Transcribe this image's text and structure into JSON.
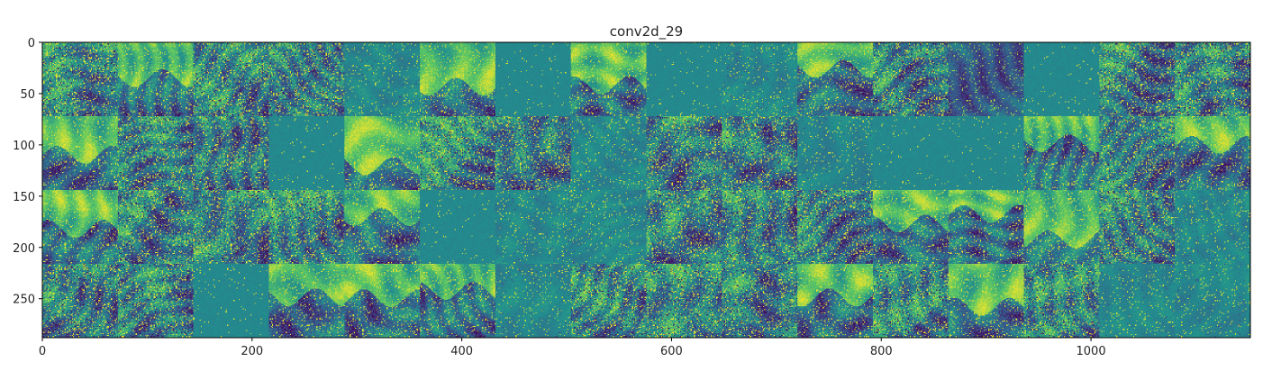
{
  "title": "conv2d_29",
  "image_grid": {
    "rows": 4,
    "cols": 16,
    "tile_pixels": 72,
    "colormap_name": "viridis",
    "colormap_stops": [
      "#440154",
      "#3b528b",
      "#21908d",
      "#5dc962",
      "#fde725"
    ],
    "xlim": [
      0,
      1152
    ],
    "ylim": [
      288,
      0
    ]
  },
  "axes": {
    "x_ticks": [
      {
        "value": 0,
        "label": "0"
      },
      {
        "value": 200,
        "label": "200"
      },
      {
        "value": 400,
        "label": "400"
      },
      {
        "value": 600,
        "label": "600"
      },
      {
        "value": 800,
        "label": "800"
      },
      {
        "value": 1000,
        "label": "1000"
      }
    ],
    "y_ticks": [
      {
        "value": 0,
        "label": "0"
      },
      {
        "value": 50,
        "label": "50"
      },
      {
        "value": 100,
        "label": "100"
      },
      {
        "value": 150,
        "label": "150"
      },
      {
        "value": 200,
        "label": "200"
      },
      {
        "value": 250,
        "label": "250"
      }
    ]
  },
  "tile_styles": [
    [
      "textured",
      "bright",
      "textured",
      "textured",
      "sparse",
      "bright",
      "flat",
      "bright",
      "flat",
      "sparse",
      "bright",
      "textured",
      "dark",
      "flat",
      "textured",
      "textured"
    ],
    [
      "bright",
      "textured",
      "textured",
      "flat",
      "bright",
      "textured",
      "textured",
      "sparse",
      "textured",
      "textured",
      "sparse",
      "flat",
      "flat",
      "bright",
      "textured",
      "bright"
    ],
    [
      "bright",
      "textured",
      "textured",
      "textured",
      "bright",
      "flat",
      "sparse",
      "sparse",
      "textured",
      "textured",
      "textured",
      "bright",
      "bright",
      "bright",
      "textured",
      "sparse"
    ],
    [
      "textured",
      "textured",
      "flat",
      "bright",
      "bright",
      "bright",
      "sparse",
      "textured",
      "textured",
      "textured",
      "bright",
      "textured",
      "bright",
      "textured",
      "sparse",
      "sparse"
    ]
  ]
}
